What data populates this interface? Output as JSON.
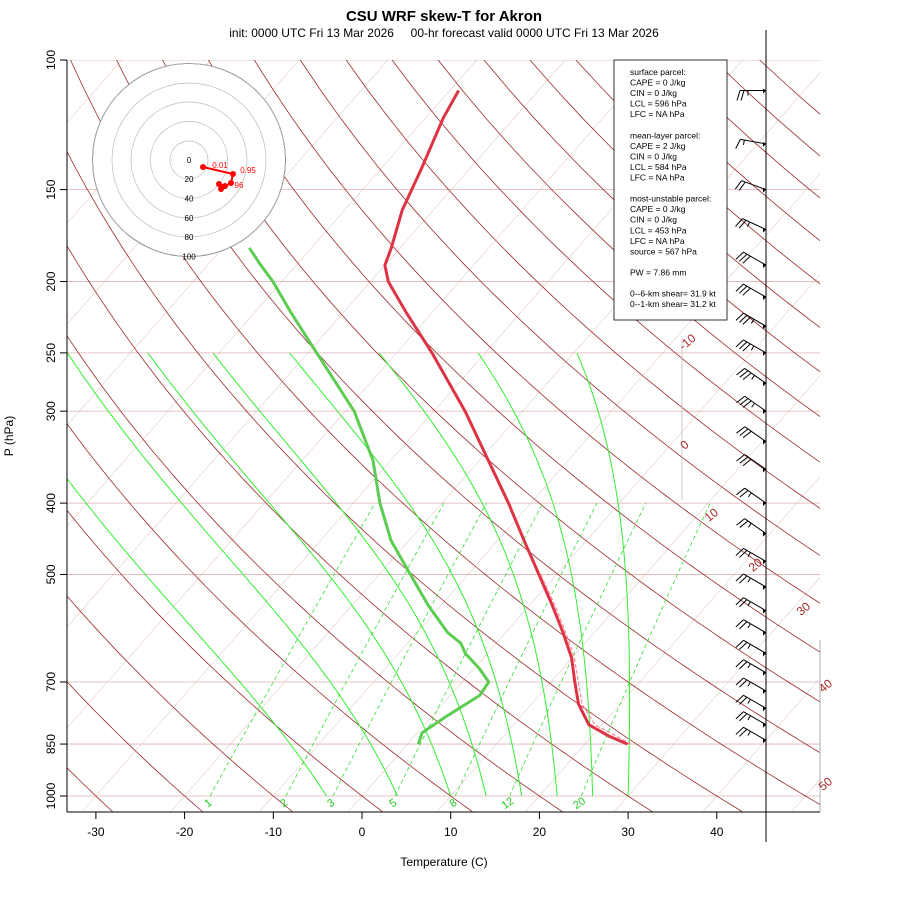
{
  "chart_data": {
    "type": "skew-t",
    "title": "CSU WRF skew-T for Akron",
    "subtitle": "init: 0000 UTC Fri 13 Mar 2026     00-hr forecast valid 0000 UTC Fri 13 Mar 2026",
    "xlabel": "Temperature (C)",
    "ylabel": "P (hPa)",
    "xlim": [
      -33,
      52
    ],
    "pressure_ticks": [
      100,
      150,
      200,
      250,
      300,
      400,
      500,
      700,
      850,
      1000
    ],
    "pressure_lines": [
      100,
      150,
      200,
      250,
      300,
      400,
      500,
      700,
      850,
      1000
    ],
    "temperature_ticks": [
      -30,
      -20,
      -10,
      0,
      10,
      20,
      30,
      40
    ],
    "isotherm_labels": [
      -10,
      0,
      10,
      20,
      30,
      40,
      50
    ],
    "mixing_ratio_labels": [
      "1",
      "2",
      "3",
      "5",
      "8",
      "12",
      "20"
    ],
    "temperature_profile": [
      {
        "p": 850,
        "t": 24.8
      },
      {
        "p": 830,
        "t": 22.0
      },
      {
        "p": 800,
        "t": 18.5
      },
      {
        "p": 750,
        "t": 15.3
      },
      {
        "p": 700,
        "t": 12.7
      },
      {
        "p": 650,
        "t": 10.0
      },
      {
        "p": 600,
        "t": 6.5
      },
      {
        "p": 550,
        "t": 2.5
      },
      {
        "p": 500,
        "t": -2.0
      },
      {
        "p": 450,
        "t": -7.0
      },
      {
        "p": 400,
        "t": -12.5
      },
      {
        "p": 350,
        "t": -19.0
      },
      {
        "p": 300,
        "t": -26.5
      },
      {
        "p": 250,
        "t": -36.0
      },
      {
        "p": 220,
        "t": -43.0
      },
      {
        "p": 200,
        "t": -48.0
      },
      {
        "p": 190,
        "t": -50.0
      },
      {
        "p": 180,
        "t": -51.0
      },
      {
        "p": 160,
        "t": -53.5
      },
      {
        "p": 140,
        "t": -55.5
      },
      {
        "p": 120,
        "t": -58.0
      },
      {
        "p": 110,
        "t": -59.0
      }
    ],
    "dewpoint_profile": [
      {
        "p": 850,
        "td": 1.2
      },
      {
        "p": 820,
        "td": 0.5
      },
      {
        "p": 780,
        "td": 1.6
      },
      {
        "p": 730,
        "td": 3.3
      },
      {
        "p": 700,
        "td": 3.0
      },
      {
        "p": 670,
        "td": 0.5
      },
      {
        "p": 640,
        "td": -2.5
      },
      {
        "p": 620,
        "td": -4.0
      },
      {
        "p": 600,
        "td": -6.5
      },
      {
        "p": 550,
        "td": -11.5
      },
      {
        "p": 500,
        "td": -16.5
      },
      {
        "p": 450,
        "td": -22.0
      },
      {
        "p": 400,
        "td": -27.0
      },
      {
        "p": 350,
        "td": -32.0
      },
      {
        "p": 300,
        "td": -39.0
      },
      {
        "p": 250,
        "td": -49.0
      },
      {
        "p": 220,
        "td": -56.0
      },
      {
        "p": 200,
        "td": -61.0
      },
      {
        "p": 190,
        "td": -64.0
      },
      {
        "p": 180,
        "td": -67.0
      }
    ],
    "parcel_profile": [
      {
        "p": 850,
        "t": 25.2
      },
      {
        "p": 800,
        "t": 19.2
      },
      {
        "p": 750,
        "t": 15.7
      },
      {
        "p": 700,
        "t": 13.1
      },
      {
        "p": 650,
        "t": 10.3
      },
      {
        "p": 600,
        "t": 6.8
      },
      {
        "p": 550,
        "t": 2.8
      },
      {
        "p": 500,
        "t": -1.8
      }
    ],
    "hodograph": {
      "rings": [
        "0",
        "20",
        "40",
        "60",
        "80",
        "100"
      ],
      "labels": [
        "0.01",
        "0.95",
        "96"
      ],
      "points": [
        {
          "u": 7,
          "v": -7
        },
        {
          "u": 22,
          "v": -14
        },
        {
          "u": 21,
          "v": -23
        },
        {
          "u": 18,
          "v": -26
        },
        {
          "u": 15,
          "v": -24
        },
        {
          "u": 16,
          "v": -29
        }
      ]
    },
    "wind_barbs": [
      {
        "p": 110,
        "dir": 270,
        "spd": 25
      },
      {
        "p": 130,
        "dir": 280,
        "spd": 15
      },
      {
        "p": 150,
        "dir": 290,
        "spd": 20
      },
      {
        "p": 170,
        "dir": 295,
        "spd": 25
      },
      {
        "p": 190,
        "dir": 300,
        "spd": 30
      },
      {
        "p": 210,
        "dir": 300,
        "spd": 30
      },
      {
        "p": 230,
        "dir": 300,
        "spd": 35
      },
      {
        "p": 250,
        "dir": 300,
        "spd": 35
      },
      {
        "p": 275,
        "dir": 305,
        "spd": 35
      },
      {
        "p": 300,
        "dir": 305,
        "spd": 35
      },
      {
        "p": 330,
        "dir": 305,
        "spd": 30
      },
      {
        "p": 360,
        "dir": 305,
        "spd": 30
      },
      {
        "p": 400,
        "dir": 305,
        "spd": 25
      },
      {
        "p": 440,
        "dir": 305,
        "spd": 25
      },
      {
        "p": 480,
        "dir": 300,
        "spd": 25
      },
      {
        "p": 520,
        "dir": 300,
        "spd": 25
      },
      {
        "p": 560,
        "dir": 300,
        "spd": 25
      },
      {
        "p": 600,
        "dir": 300,
        "spd": 25
      },
      {
        "p": 640,
        "dir": 300,
        "spd": 25
      },
      {
        "p": 680,
        "dir": 300,
        "spd": 25
      },
      {
        "p": 720,
        "dir": 300,
        "spd": 25
      },
      {
        "p": 760,
        "dir": 300,
        "spd": 25
      },
      {
        "p": 800,
        "dir": 300,
        "spd": 25
      },
      {
        "p": 840,
        "dir": 300,
        "spd": 25
      }
    ],
    "indices": {
      "lines": [
        "surface parcel:",
        "CAPE = 0 J/kg",
        "CIN = 0 J/kg",
        "LCL = 596 hPa",
        "LFC = NA hPa",
        "",
        "mean-layer parcel:",
        "CAPE = 2 J/kg",
        "CIN = 0 J/kg",
        "LCL = 584 hPa",
        "LFC = NA hPa",
        "",
        "most-unstable parcel:",
        "CAPE = 0 J/kg",
        "CIN = 0 J/kg",
        "LCL = 453 hPa",
        "LFC = NA hPa",
        "source = 567 hPa",
        "",
        "PW =  7.86 mm",
        "",
        "0--6-km shear= 31.9 kt",
        "0--1-km shear= 31.2 kt"
      ]
    }
  }
}
